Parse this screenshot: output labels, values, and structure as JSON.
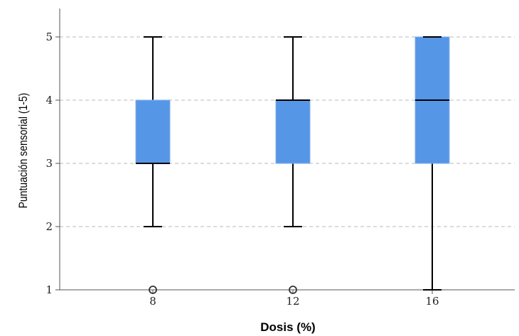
{
  "chart_data": {
    "type": "boxplot",
    "title": "",
    "xlabel": "Dosis (%)",
    "ylabel": "Puntuación sensorial (1-5)",
    "ylim": [
      1,
      5.4
    ],
    "yticks": [
      "1",
      "2",
      "3",
      "4",
      "5"
    ],
    "grid": "horizontal dashed",
    "categories": [
      "8",
      "12",
      "16"
    ],
    "boxes": [
      {
        "category": "8",
        "min": 2,
        "q1": 3,
        "median": 3,
        "q3": 4,
        "max": 5,
        "outliers": [
          1
        ]
      },
      {
        "category": "12",
        "min": 2,
        "q1": 3,
        "median": 4,
        "q3": 4,
        "max": 5,
        "outliers": [
          1
        ]
      },
      {
        "category": "16",
        "min": 1,
        "q1": 3,
        "median": 4,
        "q3": 5,
        "max": 5,
        "outliers": []
      }
    ],
    "colors": {
      "box_fill": "#5596e6",
      "line": "#000000",
      "grid": "#c8c8c8",
      "axis": "#555555"
    }
  }
}
